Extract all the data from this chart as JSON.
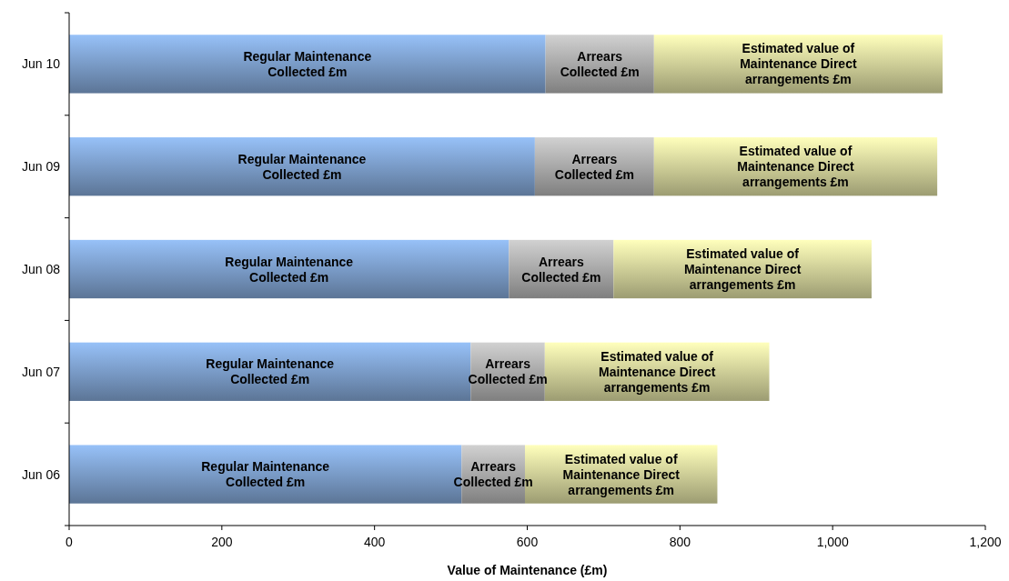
{
  "chart_data": {
    "type": "bar",
    "orientation": "horizontal",
    "stacked": true,
    "xlabel": "Value of Maintenance (£m)",
    "categories": [
      "Jun 10",
      "Jun 09",
      "Jun 08",
      "Jun 07",
      "Jun 06"
    ],
    "series": [
      {
        "name": "Regular Maintenance Collected £m",
        "color": "#7a9cc8",
        "values": [
          624,
          610,
          576,
          526,
          514
        ]
      },
      {
        "name": "Arrears Collected £m",
        "color": "#a9a9a9",
        "values": [
          142,
          156,
          137,
          97,
          83
        ]
      },
      {
        "name": "Estimated value of Maintenance Direct arrangements £m",
        "color": "#cfcf98",
        "values": [
          378,
          371,
          338,
          294,
          252
        ]
      }
    ],
    "xlim": [
      0,
      1200
    ],
    "xticks": [
      0,
      200,
      400,
      600,
      800,
      {
        "value": 1000,
        "label": "1,000"
      },
      {
        "value": 1200,
        "label": "1,200"
      }
    ]
  }
}
